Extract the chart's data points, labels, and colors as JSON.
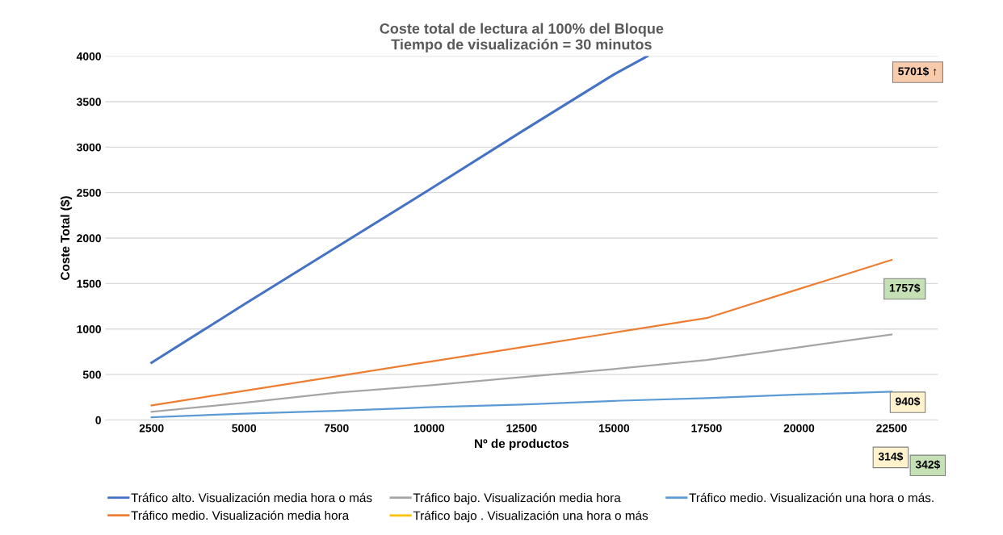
{
  "chart_data": {
    "type": "line",
    "title": "Coste total de lectura al 100% del Bloque\nTiempo de visualización = 30 minutos",
    "xlabel": "Nº de productos",
    "ylabel": "Coste Total ($)",
    "x": [
      2500,
      5000,
      7500,
      10000,
      12500,
      15000,
      17500,
      20000,
      22500
    ],
    "xlim": [
      1250,
      23750
    ],
    "xticks": [
      2500,
      5000,
      7500,
      10000,
      12500,
      15000,
      17500,
      20000,
      22500
    ],
    "series": [
      {
        "name": "Tráfico alto. Visualización media hora o más",
        "color": "#4472c4",
        "x": [
          2500,
          5000,
          7500,
          10000,
          12500,
          15000,
          15900
        ],
        "values": [
          630,
          1270,
          1900,
          2530,
          3170,
          3800,
          4000
        ]
      },
      {
        "name": "Tráfico medio. Visualización media hora",
        "color": "#ed7d31",
        "values": [
          160,
          320,
          480,
          640,
          800,
          960,
          1120,
          1440,
          1760
        ]
      },
      {
        "name": "Tráfico bajo. Visualización media hora",
        "color": "#a5a5a5",
        "values": [
          90,
          190,
          300,
          380,
          470,
          560,
          660,
          800,
          940
        ]
      },
      {
        "name": "Tráfico bajo . Visualización una hora o más",
        "color": "#ffc000",
        "values": [
          null,
          null,
          null,
          null,
          null,
          null,
          null,
          null,
          null
        ]
      },
      {
        "name": "Tráfico medio. Visualización una hora o más.",
        "color": "#5b9bd5",
        "values": [
          30,
          70,
          100,
          140,
          170,
          210,
          240,
          280,
          310
        ]
      }
    ],
    "ylim": [
      0,
      4000
    ],
    "yticks": [
      0,
      500,
      1000,
      1500,
      2000,
      2500,
      3000,
      3500,
      4000
    ],
    "grid": "y",
    "legend": "bottom",
    "marker": "none",
    "line_style": "solid",
    "annotations": [
      "5701$ ↑",
      "1757$",
      "940$",
      "314$",
      "342$"
    ]
  }
}
